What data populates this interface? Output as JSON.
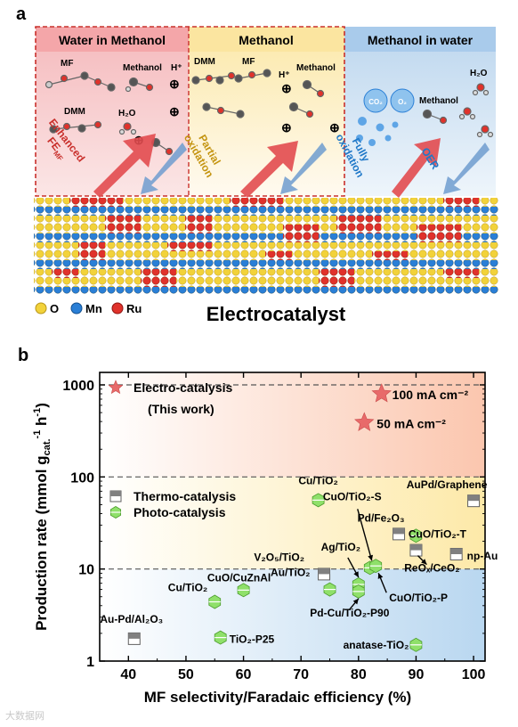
{
  "panel_a": {
    "letter": "a",
    "regions": [
      {
        "title": "Water in Methanol",
        "color": "#f8d0d2",
        "products": [
          "MF",
          "DMM",
          "Methanol",
          "H⁺",
          "H₂O"
        ],
        "arrow_label_lines": [
          "Enhanced",
          "FE_MF"
        ],
        "arrow_color": "#d9373c"
      },
      {
        "title": "Methanol",
        "color": "#fdf0c4",
        "products": [
          "DMM",
          "MF",
          "H⁺",
          "Methanol"
        ],
        "arrow_label_lines": [
          "Partial",
          "oxidation"
        ],
        "arrow_color": "#d6a21c"
      },
      {
        "title": "Methanol in water",
        "color": "#cfe2f2",
        "products": [
          "CO₂",
          "O₂",
          "H₂O",
          "Methanol"
        ],
        "arrow_label_lines": [
          "Fully",
          "oxidation"
        ],
        "arrow_color": "#1f78c8",
        "extra_label": "OER"
      }
    ],
    "legend": [
      {
        "label": "O",
        "color": "#f2d23a"
      },
      {
        "label": "Mn",
        "color": "#2a7fd6"
      },
      {
        "label": "Ru",
        "color": "#e0322b"
      }
    ],
    "caption": "Electrocatalyst"
  },
  "chart_data": {
    "letter": "b",
    "type": "scatter",
    "xlabel": "MF selectivity/Faradaic efficiency (%)",
    "ylabel": "Production rate (mmol g",
    "ylabel_sub": "cat.",
    "ylabel_sup": "-1",
    "ylabel_tail": " h",
    "ylabel_sup2": "-1",
    "ylabel_end": ")",
    "xlim": [
      35,
      102
    ],
    "ylim": [
      1,
      1000
    ],
    "yscale": "log",
    "xticks": [
      40,
      50,
      60,
      70,
      80,
      90,
      100
    ],
    "yticks": [
      1,
      10,
      100,
      1000
    ],
    "ytick_labels": [
      "1",
      "10",
      "100",
      "1000"
    ],
    "band_lines": [
      10,
      100,
      1000
    ],
    "band_colors": [
      "#cfe3f3",
      "#fdf2c8",
      "#fbd4c2"
    ],
    "legend": [
      {
        "label": "Electro-catalysis",
        "marker": "star",
        "color": "#e86a6a"
      },
      {
        "label": "(This work)",
        "marker": "none"
      },
      {
        "label": "Thermo-catalysis",
        "marker": "square",
        "color": "#808080"
      },
      {
        "label": "Photo-catalysis",
        "marker": "hexagon",
        "color": "#8fe06a"
      }
    ],
    "series": [
      {
        "name": "Electro-catalysis",
        "marker": "star",
        "color": "#e86a6a",
        "points": [
          {
            "x": 84,
            "y": 800,
            "label": "100 mA cm⁻²"
          },
          {
            "x": 81,
            "y": 390,
            "label": "50 mA cm⁻²"
          }
        ]
      },
      {
        "name": "Thermo-catalysis",
        "marker": "square",
        "color": "#808080",
        "points": [
          {
            "x": 41,
            "y": 1.75,
            "label": "Au-Pd/Al₂O₃"
          },
          {
            "x": 74,
            "y": 8.8,
            "label": "V₂O₅/TiO₂"
          },
          {
            "x": 87,
            "y": 24,
            "label": "Pd/Fe₂O₃"
          },
          {
            "x": 90,
            "y": 16,
            "label": "ReOₓ/CeO₂"
          },
          {
            "x": 97,
            "y": 14.5,
            "label": "np-Au"
          },
          {
            "x": 100,
            "y": 55,
            "label": "AuPd/Graphene"
          }
        ]
      },
      {
        "name": "Photo-catalysis",
        "marker": "hexagon",
        "color": "#8fe06a",
        "points": [
          {
            "x": 56,
            "y": 1.8,
            "label": "TiO₂-P25"
          },
          {
            "x": 55,
            "y": 4.4,
            "label": "Cu/TiO₂"
          },
          {
            "x": 60,
            "y": 5.9,
            "label": "CuO/CuZnAl"
          },
          {
            "x": 73,
            "y": 56,
            "label": "Cu/TiO₂"
          },
          {
            "x": 75,
            "y": 6.0,
            "label": "Au/TiO₂"
          },
          {
            "x": 80,
            "y": 6.8,
            "label": "Ag/TiO₂"
          },
          {
            "x": 80,
            "y": 5.7,
            "label": "Pd-Cu/TiO₂-P90"
          },
          {
            "x": 82,
            "y": 10.3,
            "label": "CuO/TiO₂-S"
          },
          {
            "x": 83,
            "y": 10.8,
            "label": "CuO/TiO₂-P"
          },
          {
            "x": 90,
            "y": 23,
            "label": "CuO/TiO₂-T"
          },
          {
            "x": 90,
            "y": 1.5,
            "label": "anatase-TiO₂"
          }
        ]
      }
    ]
  },
  "watermark": "大数据网"
}
